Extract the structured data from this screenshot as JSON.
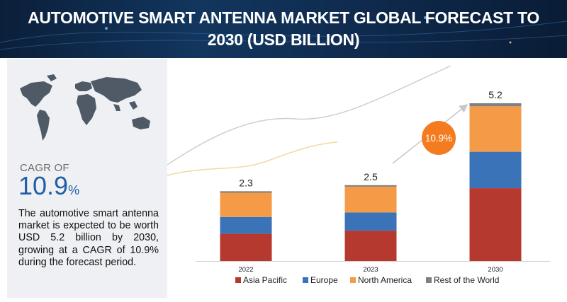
{
  "header": {
    "title": "AUTOMOTIVE SMART ANTENNA MARKET GLOBAL FORECAST TO 2030 (USD BILLION)"
  },
  "summary": {
    "cagr_label": "CAGR OF",
    "cagr_value": "10.9",
    "cagr_unit": "%",
    "description": "The automotive smart antenna market is expected to be worth USD 5.2 billion by 2030, growing at a CAGR of 10.9% during the forecast period."
  },
  "colors": {
    "asia_pacific": "#b5392f",
    "europe": "#3a73b8",
    "north_america": "#f59a47",
    "rest_of_world": "#808080",
    "callout": "#f47b20",
    "accent_blue": "#1f5fa8"
  },
  "chart_data": {
    "type": "bar",
    "stacked": true,
    "categories": [
      "2022",
      "2023",
      "2030"
    ],
    "series": [
      {
        "name": "Asia Pacific",
        "values": [
          0.9,
          1.0,
          2.4
        ]
      },
      {
        "name": "Europe",
        "values": [
          0.55,
          0.6,
          1.2
        ]
      },
      {
        "name": "North America",
        "values": [
          0.8,
          0.85,
          1.5
        ]
      },
      {
        "name": "Rest of the World",
        "values": [
          0.05,
          0.05,
          0.1
        ]
      }
    ],
    "totals": [
      "2.3",
      "2.5",
      "5.2"
    ],
    "callout": "10.9%",
    "ylim": [
      0,
      5.2
    ],
    "legend_position": "bottom",
    "grid": false
  }
}
